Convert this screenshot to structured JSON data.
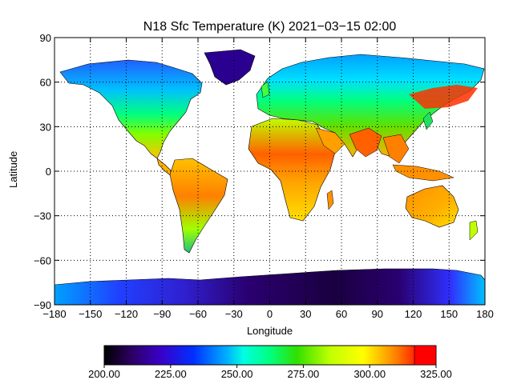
{
  "title": "N18 Sfc Temperature (K) 2021−03−15 02:00",
  "colors": {
    "frame": "#000000",
    "grid": "#000000",
    "ocean": "#ffffff"
  },
  "chart_data": {
    "type": "heatmap",
    "title": "N18 Sfc Temperature (K) 2021−03−15 02:00",
    "xlabel": "Longitude",
    "ylabel": "Latitude",
    "xlim": [
      -180,
      180
    ],
    "ylim": [
      -90,
      90
    ],
    "x_ticks": [
      "−180",
      "−150",
      "−120",
      "−90",
      "−60",
      "−30",
      "0",
      "30",
      "60",
      "90",
      "120",
      "150",
      "180"
    ],
    "y_ticks": [
      "90",
      "60",
      "30",
      "0",
      "−30",
      "−60",
      "−90"
    ],
    "grid": true,
    "colorbar": {
      "min": 200,
      "max": 325,
      "tick_labels": [
        "200.00",
        "225.00",
        "250.00",
        "275.00",
        "300.00",
        "325.00"
      ],
      "colormap": [
        "#000000",
        "#2b0060",
        "#3a00c8",
        "#0030ff",
        "#00b0ff",
        "#00ffe0",
        "#00ff80",
        "#30e000",
        "#c0ff00",
        "#ffff00",
        "#ff8000",
        "#ff2000",
        "#ff0000"
      ]
    }
  }
}
